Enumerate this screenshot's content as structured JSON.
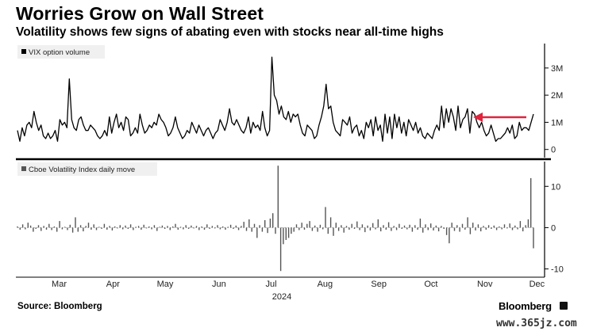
{
  "title": "Worries Grow on Wall Street",
  "subtitle": "Volatility shows few signs of abating even with stocks near all-time highs",
  "source": "Source: Bloomberg",
  "brand": "Bloomberg",
  "watermark": "www.365jz.com",
  "colors": {
    "line": "#000000",
    "bars": "#555555",
    "arrow": "#e0243c",
    "axis": "#000000",
    "legend_bg": "#f0f0f0"
  },
  "chart_data": [
    {
      "type": "line",
      "legend": "VIX option volume",
      "ytick_labels": [
        "0",
        "1M",
        "2M",
        "3M"
      ],
      "yticks": [
        0,
        1,
        2,
        3
      ],
      "ylim": [
        -0.3,
        3.9
      ],
      "x_start": "2024-02-20",
      "x_end": "2024-12-13",
      "annotation": "arrow",
      "series": [
        {
          "values": [
            0.7,
            0.3,
            0.8,
            0.5,
            0.9,
            1.0,
            0.8,
            1.4,
            1.0,
            0.7,
            0.9,
            0.5,
            0.4,
            0.6,
            0.4,
            0.5,
            0.7,
            0.3,
            1.1,
            0.9,
            1.0,
            0.8,
            2.6,
            1.1,
            0.8,
            0.7,
            1.1,
            1.2,
            0.9,
            0.7,
            0.7,
            0.9,
            0.8,
            0.7,
            0.5,
            0.4,
            0.5,
            0.7,
            0.5,
            1.2,
            0.6,
            1.0,
            1.3,
            0.8,
            1.0,
            0.7,
            1.2,
            1.1,
            0.5,
            0.6,
            0.8,
            0.6,
            1.3,
            0.9,
            0.6,
            0.7,
            0.9,
            0.8,
            1.0,
            0.9,
            1.3,
            1.1,
            1.0,
            0.8,
            0.5,
            0.6,
            0.8,
            1.2,
            0.8,
            0.6,
            0.4,
            0.5,
            0.7,
            0.6,
            1.0,
            0.8,
            0.6,
            0.9,
            0.7,
            0.5,
            0.7,
            0.8,
            0.6,
            0.4,
            0.6,
            0.7,
            1.1,
            0.9,
            0.7,
            1.0,
            1.5,
            1.0,
            0.9,
            1.1,
            0.9,
            0.7,
            0.6,
            0.8,
            1.2,
            0.6,
            1.0,
            0.8,
            0.9,
            0.7,
            1.4,
            0.8,
            0.5,
            0.7,
            3.4,
            2.0,
            1.8,
            1.3,
            1.6,
            1.2,
            1.1,
            1.4,
            1.0,
            1.3,
            1.2,
            1.3,
            0.9,
            0.6,
            0.5,
            0.9,
            0.8,
            0.7,
            0.4,
            0.5,
            0.9,
            1.2,
            1.6,
            2.4,
            1.5,
            1.6,
            1.0,
            0.7,
            0.6,
            0.5,
            1.1,
            1.0,
            0.9,
            1.2,
            0.6,
            0.8,
            0.9,
            0.5,
            0.7,
            0.4,
            1.0,
            0.8,
            1.1,
            0.5,
            1.2,
            0.7,
            0.9,
            0.3,
            1.3,
            0.6,
            1.2,
            0.4,
            1.3,
            0.8,
            1.2,
            0.6,
            1.0,
            0.5,
            1.1,
            0.9,
            0.7,
            1.0,
            0.6,
            0.8,
            0.5,
            0.4,
            0.6,
            0.5,
            0.4,
            0.7,
            0.9,
            0.7,
            1.6,
            0.8,
            1.5,
            1.0,
            1.5,
            1.2,
            0.7,
            1.6,
            0.8,
            1.1,
            1.2,
            1.5,
            0.6,
            1.4,
            1.3,
            1.0,
            0.8,
            1.0,
            0.7,
            0.5,
            0.6,
            0.9,
            0.6,
            0.3,
            0.4,
            0.4,
            0.5,
            0.6,
            0.8,
            0.6,
            0.9,
            0.4,
            0.5,
            1.0,
            0.7,
            0.8,
            0.8,
            0.7,
            1.0,
            1.3
          ]
        }
      ]
    },
    {
      "type": "bar",
      "legend": "Cboe Volatility Index daily move",
      "ytick_labels": [
        "-10",
        "0",
        "10"
      ],
      "yticks": [
        -10,
        0,
        10
      ],
      "ylim": [
        -12,
        16
      ],
      "x_start": "2024-02-20",
      "x_end": "2024-12-13",
      "xtick_labels": [
        "Mar",
        "Apr",
        "May",
        "Jun",
        "Jul",
        "Aug",
        "Sep",
        "Oct",
        "Nov",
        "Dec"
      ],
      "xtick_dates": [
        "2024-03-15",
        "2024-04-15",
        "2024-05-15",
        "2024-06-15",
        "2024-07-15",
        "2024-08-15",
        "2024-09-15",
        "2024-10-15",
        "2024-11-15",
        "2024-12-15"
      ],
      "year_label": "2024",
      "series": [
        {
          "values": [
            0.3,
            -0.5,
            0.8,
            -0.4,
            1.2,
            0.5,
            -1.0,
            -0.3,
            0.6,
            -0.8,
            0.4,
            -0.5,
            0.9,
            -0.6,
            0.3,
            -1.0,
            1.6,
            -0.4,
            0.2,
            -0.6,
            0.7,
            -1.2,
            2.5,
            -1.0,
            0.6,
            -0.9,
            0.4,
            1.2,
            -0.5,
            0.8,
            -0.6,
            0.2,
            -0.3,
            0.9,
            -0.5,
            0.4,
            -0.7,
            0.3,
            -0.2,
            0.6,
            -0.4,
            0.5,
            -0.3,
            0.8,
            -0.6,
            0.2,
            0.4,
            -0.5,
            0.7,
            -0.2,
            0.3,
            -0.4,
            0.6,
            -0.8,
            0.2,
            0.5,
            -0.3,
            0.4,
            -0.6,
            0.3,
            0.9,
            -0.5,
            0.2,
            -0.4,
            0.6,
            -0.3,
            0.5,
            -0.2,
            0.4,
            -0.6,
            0.3,
            -0.5,
            0.8,
            -0.3,
            0.4,
            -0.2,
            0.6,
            -0.4,
            0.3,
            -0.5,
            0.2,
            0.7,
            -0.3,
            0.5,
            -0.6,
            0.4,
            1.4,
            -0.8,
            2.0,
            -1.0,
            0.9,
            -2.5,
            0.6,
            -1.0,
            1.8,
            -1.3,
            2.2,
            3.5,
            -1.5,
            15.0,
            -10.5,
            -4.0,
            -3.0,
            -2.5,
            -1.5,
            -1.0,
            0.8,
            -0.6,
            1.2,
            -0.5,
            0.9,
            1.6,
            -0.8,
            0.5,
            -1.0,
            0.7,
            -0.4,
            5.0,
            -1.5,
            2.5,
            -2.0,
            1.2,
            -0.8,
            0.6,
            -1.2,
            0.4,
            -0.5,
            0.9,
            -0.3,
            1.5,
            -0.6,
            0.8,
            -1.1,
            0.5,
            -0.7,
            1.1,
            -0.4,
            2.0,
            -0.9,
            0.6,
            -0.5,
            1.3,
            -0.8,
            0.4,
            -0.6,
            0.9,
            -0.3,
            0.5,
            -0.4,
            0.7,
            -1.0,
            0.6,
            -0.5,
            2.2,
            -1.2,
            0.8,
            -0.6,
            1.0,
            -0.7,
            0.5,
            -0.9,
            0.4,
            -0.3,
            -1.8,
            -3.8,
            1.2,
            -0.8,
            0.6,
            -1.0,
            0.9,
            -0.5,
            2.5,
            -1.6,
            1.2,
            -0.7,
            0.8,
            -0.9,
            0.4,
            -0.5,
            0.6,
            -0.3,
            0.5,
            -0.6,
            0.3,
            -0.4,
            0.8,
            -0.2,
            1.0,
            -0.6,
            0.5,
            -0.4,
            1.6,
            -0.9,
            0.6,
            2.0,
            12.0,
            -5.0
          ]
        }
      ]
    }
  ]
}
